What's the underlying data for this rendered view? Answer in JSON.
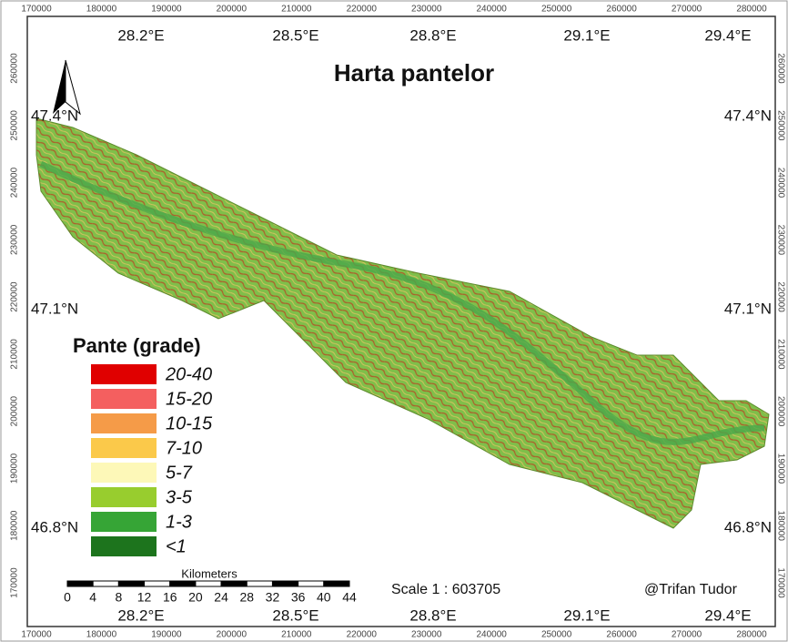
{
  "map": {
    "title": "Harta pantelor",
    "x_ticks": [
      170000,
      180000,
      190000,
      200000,
      210000,
      220000,
      230000,
      240000,
      250000,
      260000,
      270000,
      280000
    ],
    "y_ticks": [
      260000,
      250000,
      240000,
      230000,
      220000,
      210000,
      200000,
      190000,
      180000,
      170000
    ],
    "longitudes": [
      "28.2°E",
      "28.5°E",
      "28.8°E",
      "29.1°E",
      "29.4°E"
    ],
    "latitudes": [
      "47.4°N",
      "47.1°N",
      "46.8°N"
    ],
    "legend": {
      "title": "Pante (grade)",
      "items": [
        {
          "label": "20-40",
          "color": "#e00000"
        },
        {
          "label": "15-20",
          "color": "#f45f5f"
        },
        {
          "label": "10-15",
          "color": "#f59b48"
        },
        {
          "label": "7-10",
          "color": "#fbc94a"
        },
        {
          "label": "5-7",
          "color": "#fdf8b8"
        },
        {
          "label": "3-5",
          "color": "#98cd2e"
        },
        {
          "label": "1-3",
          "color": "#36a536"
        },
        {
          "label": "<1",
          "color": "#1d741d"
        }
      ]
    },
    "scale_bar": {
      "unit": "Kilometers",
      "labels": [
        0,
        4,
        8,
        12,
        16,
        20,
        24,
        28,
        32,
        36,
        40,
        44
      ]
    },
    "scale_text": "Scale 1 : 603705",
    "author": "@Trifan Tudor"
  }
}
